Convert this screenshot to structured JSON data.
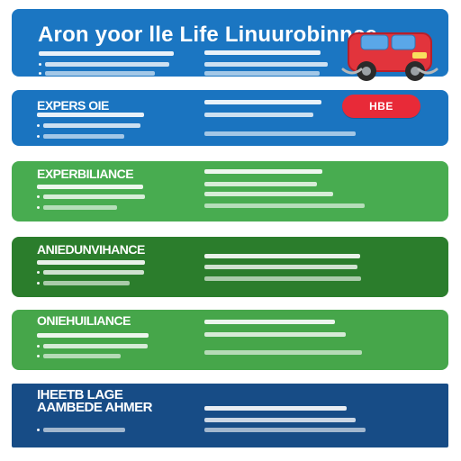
{
  "header": {
    "title": "Aron yoor lle Life Linuurobinnce"
  },
  "sections": [
    {
      "title": "EXPERS OIE",
      "tag": "HBE"
    },
    {
      "title": "EXPERBILIANCE"
    },
    {
      "title": "ANIEDUNVIHANCE"
    },
    {
      "title": "ONIEHUILIANCE"
    },
    {
      "title": "IHEETB LAGE\nAAMBEDE AHMER"
    }
  ],
  "icons": {
    "car": "car-icon"
  },
  "colors": {
    "page_bg": "#ffffff",
    "band_blue": "#1b76c2",
    "band_blue2": "#1a74c0",
    "band_green": "#48ac50",
    "band_dark_green": "#2b7d2c",
    "band_green2": "#46a64a",
    "band_navy": "#174c86",
    "tag_red": "#e82a38"
  }
}
